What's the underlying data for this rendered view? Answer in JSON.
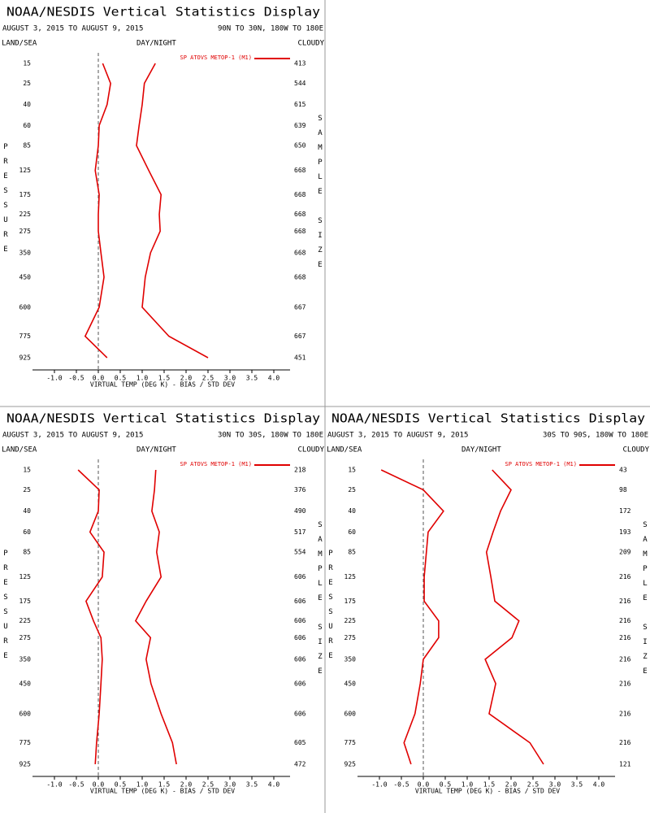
{
  "chart_data": [
    {
      "type": "line",
      "title": "NOAA/NESDIS Vertical Statistics Display",
      "subtitle": "AUGUST 3, 2015 TO AUGUST 9, 2015",
      "region": "90N TO 30N, 180W TO 180E",
      "left_label": "LAND/SEA",
      "center_label": "DAY/NIGHT",
      "right_label": "CLOUDY",
      "y_label": "PRESSURE",
      "y2_label": "SAMPLE SIZE",
      "x_label": "VIRTUAL TEMP (DEG K) - BIAS / STD DEV",
      "categories": [
        15,
        25,
        40,
        60,
        85,
        125,
        175,
        225,
        275,
        350,
        450,
        600,
        775,
        925
      ],
      "sample_size": [
        413,
        544,
        615,
        639,
        650,
        668,
        668,
        668,
        668,
        668,
        668,
        667,
        667,
        451
      ],
      "series": [
        {
          "name": "SP ATOVS METOP-1 (M1)",
          "color": "#e00000",
          "bias": [
            0.1,
            0.28,
            0.2,
            0.02,
            0.0,
            -0.07,
            0.02,
            0.0,
            0.0,
            0.06,
            0.13,
            0.02,
            -0.3,
            0.2
          ],
          "std_dev": [
            1.3,
            1.05,
            1.0,
            0.93,
            0.87,
            1.15,
            1.43,
            1.39,
            1.41,
            1.19,
            1.07,
            1.0,
            1.61,
            2.5
          ]
        }
      ],
      "xlim": [
        -1.5,
        4.5
      ],
      "xticks": [
        {
          "value": -1,
          "label": "-1.0"
        },
        -0.5,
        {
          "value": 0,
          "label": "0.0"
        },
        0.5,
        {
          "value": 1,
          "label": "1.0"
        },
        1.5,
        {
          "value": 2,
          "label": "2.0"
        },
        2.5,
        {
          "value": 3,
          "label": "3.0"
        },
        3.5,
        {
          "value": 4,
          "label": "4.0"
        }
      ]
    },
    {
      "type": "line",
      "title": "NOAA/NESDIS Vertical Statistics Display",
      "subtitle": "AUGUST 3, 2015 TO AUGUST 9, 2015",
      "region": "30N TO 30S, 180W TO 180E",
      "left_label": "LAND/SEA",
      "center_label": "DAY/NIGHT",
      "right_label": "CLOUDY",
      "y_label": "PRESSURE",
      "y2_label": "SAMPLE SIZE",
      "x_label": "VIRTUAL TEMP (DEG K) - BIAS / STD DEV",
      "categories": [
        15,
        25,
        40,
        60,
        85,
        125,
        175,
        225,
        275,
        350,
        450,
        600,
        775,
        925
      ],
      "sample_size": [
        218,
        376,
        490,
        517,
        554,
        606,
        606,
        606,
        606,
        606,
        606,
        606,
        605,
        472
      ],
      "series": [
        {
          "name": "SP ATOVS METOP-1 (M1)",
          "color": "#e00000",
          "bias": [
            -0.46,
            0.02,
            0.0,
            -0.19,
            0.13,
            0.09,
            -0.28,
            -0.11,
            0.06,
            0.09,
            0.06,
            0.02,
            -0.04,
            -0.07
          ],
          "std_dev": [
            1.31,
            1.28,
            1.22,
            1.39,
            1.33,
            1.43,
            1.09,
            0.85,
            1.19,
            1.09,
            1.2,
            1.43,
            1.69,
            1.78
          ]
        }
      ],
      "xlim": [
        -1.5,
        4.5
      ],
      "xticks": [
        {
          "value": -1,
          "label": "-1.0"
        },
        -0.5,
        {
          "value": 0,
          "label": "0.0"
        },
        0.5,
        {
          "value": 1,
          "label": "1.0"
        },
        1.5,
        {
          "value": 2,
          "label": "2.0"
        },
        2.5,
        {
          "value": 3,
          "label": "3.0"
        },
        3.5,
        {
          "value": 4,
          "label": "4.0"
        }
      ]
    },
    {
      "type": "line",
      "title": "NOAA/NESDIS Vertical Statistics Display",
      "subtitle": "AUGUST 3, 2015 TO AUGUST 9, 2015",
      "region": "30S TO 90S, 180W TO 180E",
      "left_label": "LAND/SEA",
      "center_label": "DAY/NIGHT",
      "right_label": "CLOUDY",
      "y_label": "PRESSURE",
      "y2_label": "SAMPLE SIZE",
      "x_label": "VIRTUAL TEMP (DEG K) - BIAS / STD DEV",
      "categories": [
        15,
        25,
        40,
        60,
        85,
        125,
        175,
        225,
        275,
        350,
        450,
        600,
        775,
        925
      ],
      "sample_size": [
        43,
        98,
        172,
        193,
        209,
        216,
        216,
        216,
        216,
        216,
        216,
        216,
        216,
        121
      ],
      "series": [
        {
          "name": "SP ATOVS METOP-1 (M1)",
          "color": "#e00000",
          "bias": [
            -0.96,
            0.0,
            0.46,
            0.11,
            0.07,
            0.02,
            0.02,
            0.35,
            0.35,
            0.0,
            -0.07,
            -0.19,
            -0.44,
            -0.28
          ],
          "std_dev": [
            1.57,
            2.0,
            1.76,
            1.59,
            1.44,
            1.54,
            1.63,
            2.18,
            2.02,
            1.41,
            1.65,
            1.5,
            2.43,
            2.74
          ]
        }
      ],
      "xlim": [
        -1.5,
        4.5
      ],
      "xticks": [
        {
          "value": -1,
          "label": "-1.0"
        },
        -0.5,
        {
          "value": 0,
          "label": "0.0"
        },
        0.5,
        {
          "value": 1,
          "label": "1.0"
        },
        1.5,
        {
          "value": 2,
          "label": "2.0"
        },
        2.5,
        {
          "value": 3,
          "label": "3.0"
        },
        3.5,
        {
          "value": 4,
          "label": "4.0"
        }
      ]
    }
  ]
}
